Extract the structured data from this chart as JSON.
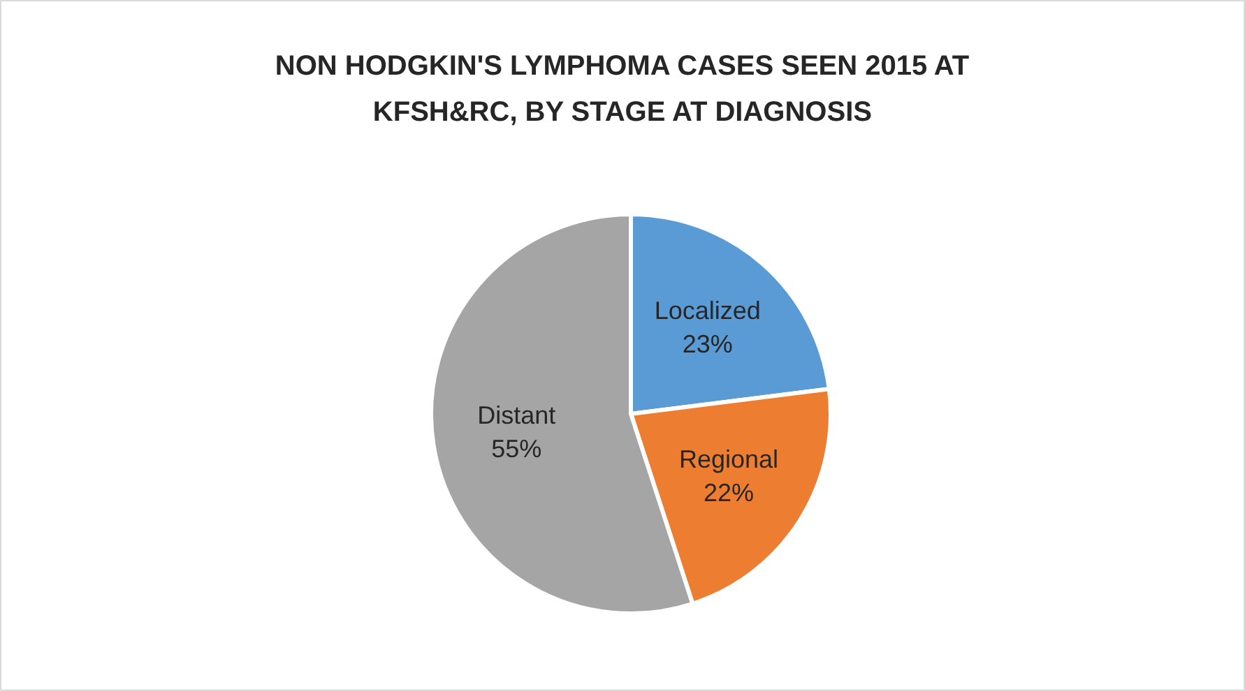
{
  "chart_data": {
    "type": "pie",
    "title": "NON HODGKIN'S LYMPHOMA CASES SEEN 2015 AT KFSH&RC, BY STAGE AT DIAGNOSIS",
    "categories": [
      "Localized",
      "Regional",
      "Distant"
    ],
    "values": [
      23,
      22,
      55
    ],
    "colors": [
      "#5b9bd5",
      "#ed7d31",
      "#a5a5a5"
    ],
    "value_labels": [
      "23%",
      "22%",
      "55%"
    ]
  }
}
